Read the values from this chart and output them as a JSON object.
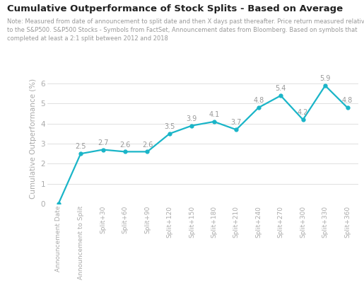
{
  "title": "Cumulative Outperformance of Stock Splits - Based on Average",
  "note_line1": "Note: Measured from date of announcement to split date and then X days past thereafter. Price return measured relative",
  "note_line2": "to the S&P500. S&P500 Stocks - Symbols from FactSet, Announcement dates from Bloomberg. Based on symbols that",
  "note_line3": "completed at least a 2:1 split between 2012 and 2018",
  "categories": [
    "Announcement Date",
    "Announcement to Split",
    "Split+30",
    "Split+60",
    "Split+90",
    "Split+120",
    "Split+150",
    "Split+180",
    "Split+210",
    "Split+240",
    "Split+270",
    "Split+300",
    "Split+330",
    "Split+360"
  ],
  "values": [
    0.0,
    2.5,
    2.7,
    2.6,
    2.6,
    3.5,
    3.9,
    4.1,
    3.7,
    4.8,
    5.4,
    4.2,
    5.9,
    4.8
  ],
  "line_color": "#1ab5c8",
  "marker_color": "#1ab5c8",
  "title_color": "#222222",
  "note_color": "#999999",
  "ylabel": "Cumulative Outperformance (%)",
  "ylim": [
    0,
    6.5
  ],
  "yticks": [
    0,
    1,
    2,
    3,
    4,
    5,
    6
  ],
  "grid_color": "#e0e0e0",
  "background_color": "#ffffff",
  "label_color": "#aaaaaa",
  "annotation_color": "#999999",
  "title_fontsize": 9.5,
  "note_fontsize": 6.0,
  "ylabel_fontsize": 7.5,
  "ytick_fontsize": 7.5,
  "xtick_fontsize": 6.5,
  "annotation_fontsize": 7.0
}
